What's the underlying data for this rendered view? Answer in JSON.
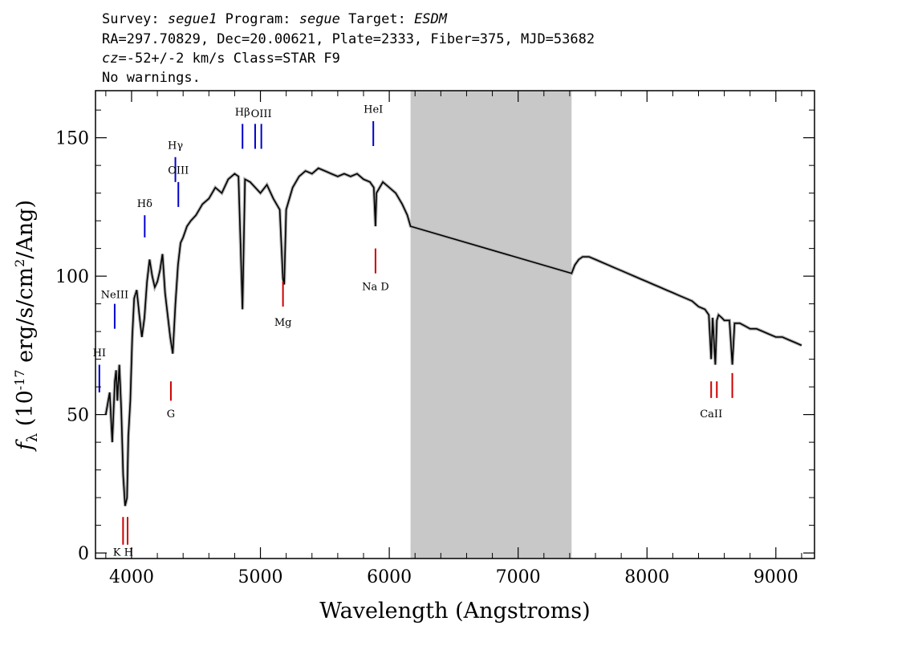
{
  "header": {
    "survey_label": "Survey:",
    "survey": "segue1",
    "program_label": "Program:",
    "program": "segue",
    "target_label": "Target:",
    "target": "ESDM",
    "line2": "RA=297.70829, Dec=20.00621, Plate=2333, Fiber=375, MJD=53682",
    "cz_label": "cz",
    "cz_value": "=-52+/-2 km/s Class=STAR F9",
    "warnings": "No warnings."
  },
  "chart_data": {
    "type": "line",
    "xlabel": "Wavelength (Angstroms)",
    "ylabel": "f_λ (10^-17 erg/s/cm^2/Ang)",
    "xlim": [
      3720,
      9300
    ],
    "ylim": [
      -2,
      167
    ],
    "xticks": [
      4000,
      5000,
      6000,
      7000,
      8000,
      9000
    ],
    "yticks": [
      0,
      50,
      100,
      150
    ],
    "masked_region": [
      6165,
      7415
    ],
    "colors": {
      "spectrum": "#000000",
      "error": "#b0b0b0",
      "mask": "#c8c8c8",
      "emission": "#0000cc",
      "absorption": "#cc0000"
    },
    "series": [
      {
        "x": [
          3800,
          3830,
          3850,
          3870,
          3880,
          3890,
          3905,
          3920,
          3935,
          3950,
          3965,
          3975,
          3990,
          4005,
          4020,
          4040,
          4060,
          4080,
          4100,
          4120,
          4140,
          4160,
          4180,
          4200,
          4220,
          4240,
          4260,
          4280,
          4300,
          4320,
          4340,
          4360,
          4380,
          4400,
          4430,
          4460,
          4500,
          4550,
          4600,
          4650,
          4700,
          4750,
          4800,
          4830,
          4861,
          4880,
          4920,
          4960,
          5000,
          5050,
          5100,
          5150,
          5175,
          5185,
          5200,
          5250,
          5300,
          5350,
          5400,
          5450,
          5500,
          5550,
          5600,
          5650,
          5700,
          5750,
          5800,
          5850,
          5880,
          5893,
          5900,
          5950,
          6000,
          6050,
          6100,
          6140,
          6165,
          7415,
          7440,
          7470,
          7500,
          7550,
          7600,
          7650,
          7700,
          7750,
          7800,
          7850,
          7900,
          7950,
          8000,
          8050,
          8100,
          8150,
          8200,
          8250,
          8300,
          8350,
          8400,
          8450,
          8480,
          8498,
          8510,
          8530,
          8542,
          8555,
          8580,
          8600,
          8640,
          8662,
          8680,
          8720,
          8760,
          8800,
          8850,
          8900,
          8950,
          9000,
          9050,
          9100,
          9150,
          9200
        ],
        "y": [
          50,
          58,
          40,
          62,
          66,
          55,
          68,
          52,
          28,
          17,
          20,
          42,
          55,
          78,
          92,
          95,
          86,
          78,
          85,
          98,
          106,
          100,
          96,
          98,
          102,
          108,
          94,
          86,
          78,
          72,
          90,
          104,
          112,
          114,
          118,
          120,
          122,
          126,
          128,
          132,
          130,
          135,
          137,
          136,
          88,
          135,
          134,
          132,
          130,
          133,
          128,
          124,
          99,
          97,
          124,
          132,
          136,
          138,
          137,
          139,
          138,
          137,
          136,
          137,
          136,
          137,
          135,
          134,
          132,
          118,
          130,
          134,
          132,
          130,
          126,
          122,
          118,
          101,
          104,
          106,
          107,
          107,
          106,
          105,
          104,
          103,
          102,
          101,
          100,
          99,
          98,
          97,
          96,
          95,
          94,
          93,
          92,
          91,
          89,
          88,
          86,
          70,
          85,
          68,
          84,
          86,
          85,
          84,
          84,
          68,
          83,
          83,
          82,
          81,
          81,
          80,
          79,
          78,
          78,
          77,
          76,
          75
        ]
      }
    ],
    "lines": [
      {
        "name": "HI",
        "x": 3750,
        "y1": 58,
        "y2": 68,
        "color": "emission",
        "label_y": 71
      },
      {
        "name": "NeIII",
        "x": 3869,
        "y1": 81,
        "y2": 90,
        "color": "emission",
        "label_y": 92
      },
      {
        "name": "Hδ",
        "x": 4102,
        "y1": 114,
        "y2": 122,
        "color": "emission",
        "label_y": 125
      },
      {
        "name": "Hγ",
        "x": 4340,
        "y1": 134,
        "y2": 143,
        "color": "emission",
        "label_y": 146
      },
      {
        "name": "OIII",
        "x": 4363,
        "y1": 125,
        "y2": 134,
        "color": "emission",
        "label_y": 137
      },
      {
        "name": "Hβ",
        "x": 4861,
        "y1": 146,
        "y2": 155,
        "color": "emission",
        "label_y": 158
      },
      {
        "name": "OIII",
        "x": 4959,
        "y1": 146,
        "y2": 155,
        "color": "emission",
        "label_y": null
      },
      {
        "name": "OIII_label",
        "x": 5007,
        "y1": 146,
        "y2": 155,
        "color": "emission",
        "label_y": 157.5,
        "text": "OIII"
      },
      {
        "name": "HeI",
        "x": 5876,
        "y1": 147,
        "y2": 156,
        "color": "emission",
        "label_y": 159
      },
      {
        "name": "K",
        "x": 3934,
        "y1": 3,
        "y2": 13,
        "color": "absorption",
        "label_y": -1
      },
      {
        "name": "H",
        "x": 3969,
        "y1": 3,
        "y2": 13,
        "color": "absorption",
        "label_y": null
      },
      {
        "name": "G",
        "x": 4305,
        "y1": 55,
        "y2": 62,
        "color": "absorption",
        "label_y": 49
      },
      {
        "name": "Mg",
        "x": 5175,
        "y1": 89,
        "y2": 98,
        "color": "absorption",
        "label_y": 82
      },
      {
        "name": "Na D",
        "x": 5893,
        "y1": 101,
        "y2": 110,
        "color": "absorption",
        "label_y": 95
      },
      {
        "name": "CaII",
        "x": 8498,
        "y1": 56,
        "y2": 62,
        "color": "absorption",
        "label_y": 49
      },
      {
        "name": "CaII_b",
        "x": 8542,
        "y1": 56,
        "y2": 62,
        "color": "absorption",
        "label_y": null
      },
      {
        "name": "CaII_c",
        "x": 8662,
        "y1": 56,
        "y2": 65,
        "color": "absorption",
        "label_y": null
      }
    ]
  }
}
